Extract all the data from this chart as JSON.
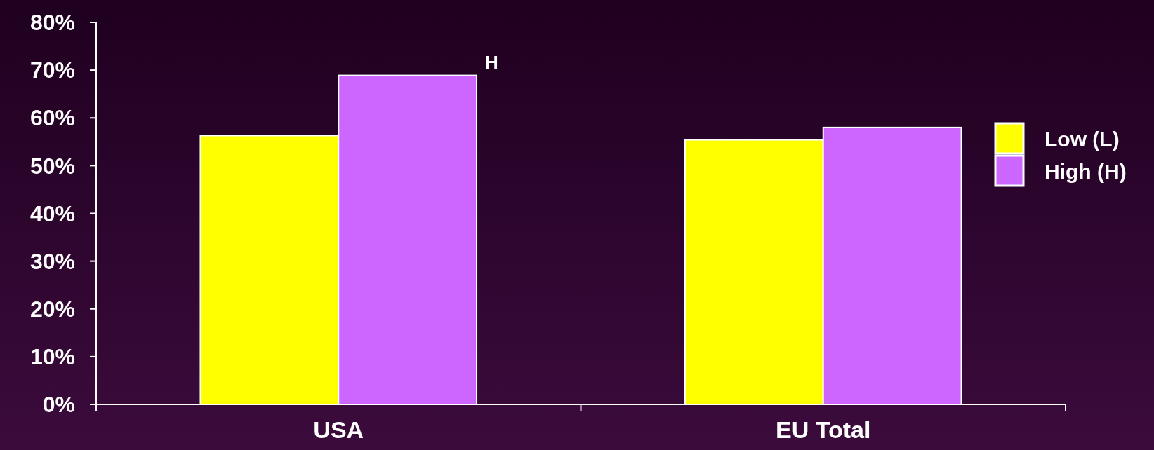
{
  "chart_data": {
    "type": "bar",
    "categories": [
      "USA",
      "EU Total"
    ],
    "series": [
      {
        "name": "Low (L)",
        "color": "#ffff00",
        "values": [
          56.3,
          55.4
        ]
      },
      {
        "name": "High (H)",
        "color": "#cc66ff",
        "values": [
          68.9,
          58
        ]
      }
    ],
    "ylim": [
      0,
      80
    ],
    "yticks": [
      {
        "value": 0,
        "label": "0%"
      },
      {
        "value": 10,
        "label": "10%"
      },
      {
        "value": 20,
        "label": "20%"
      },
      {
        "value": 30,
        "label": "30%"
      },
      {
        "value": 40,
        "label": "40%"
      },
      {
        "value": 50,
        "label": "50%"
      },
      {
        "value": 60,
        "label": "60%"
      },
      {
        "value": 70,
        "label": "70%"
      },
      {
        "value": 80,
        "label": "80%"
      }
    ],
    "annotations": [
      "H"
    ],
    "grid": false,
    "legend": "right"
  }
}
